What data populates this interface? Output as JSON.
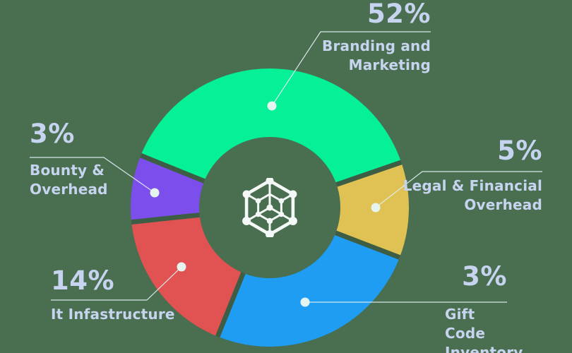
{
  "background_color": "#4A6F50",
  "slice_gap_color": "#3D5E45",
  "text_color": "#C7D4F0",
  "leader_line_color": "#DFECEF",
  "marker_dot_color": "#E6F4F0",
  "center_icon": {
    "name": "blockchain-network-icon",
    "color": "#F4F8F6"
  },
  "chart_data": {
    "type": "donut",
    "unit": "%",
    "legend_position": "callouts-around-chart",
    "slices": [
      {
        "id": "branding",
        "pct": "52%",
        "value": 52,
        "label": "Branding and\nMarketing",
        "color": "#06F098",
        "arc_start_deg": 19,
        "arc_end_deg": 158
      },
      {
        "id": "bounty",
        "pct": "3%",
        "value": 3,
        "label": "Bounty &\nOverhead",
        "color": "#7C4FEC",
        "arc_start_deg": 158,
        "arc_end_deg": 186
      },
      {
        "id": "it-infrastructure",
        "pct": "14%",
        "value": 14,
        "label": "It Infastructure",
        "color": "#E05352",
        "arc_start_deg": 186,
        "arc_end_deg": 248
      },
      {
        "id": "gift-code",
        "pct": "3%",
        "value": 3,
        "label": "Gift Code\nInventory",
        "color": "#1F9DF2",
        "arc_start_deg": 248,
        "arc_end_deg": 339
      },
      {
        "id": "legal",
        "pct": "5%",
        "value": 5,
        "label": "Legal & Financial\nOverhead",
        "color": "#DFC253",
        "arc_start_deg": 339,
        "arc_end_deg": 379
      }
    ]
  }
}
